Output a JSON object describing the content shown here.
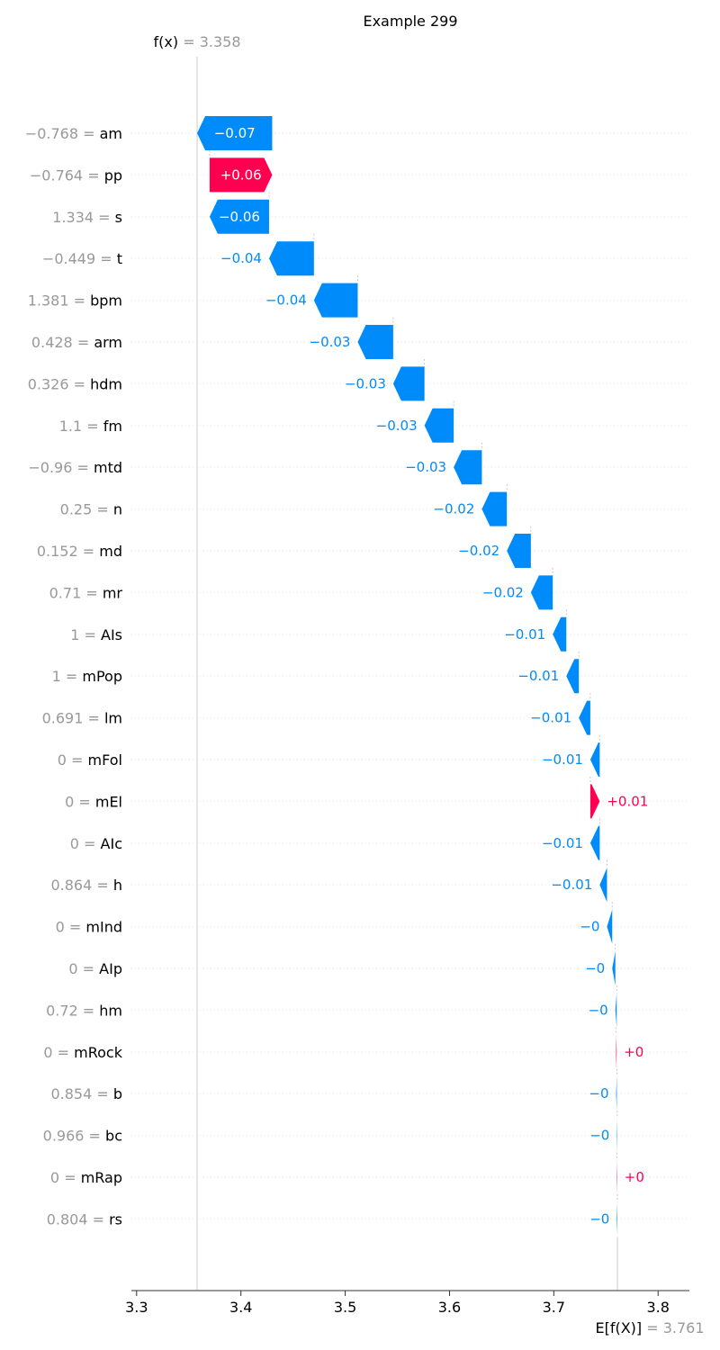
{
  "chart_data": {
    "type": "waterfall",
    "title": "Example 299",
    "fx": {
      "label": "f(x)",
      "value": "3.358"
    },
    "efx": {
      "label": "E[f(X)]",
      "value": "3.761"
    },
    "base_value": 3.761,
    "output_value": 3.358,
    "xlim": [
      3.295,
      3.83
    ],
    "xticks": [
      3.3,
      3.4,
      3.5,
      3.6,
      3.7,
      3.8
    ],
    "xtick_labels": [
      "3.3",
      "3.4",
      "3.5",
      "3.6",
      "3.7",
      "3.8"
    ],
    "colors": {
      "positive": "#ff0051",
      "negative": "#008bfb"
    },
    "features": [
      {
        "value": "−0.768",
        "name": "am",
        "start": 3.43,
        "end": 3.358,
        "label": "−0.07"
      },
      {
        "value": "−0.764",
        "name": "pp",
        "start": 3.37,
        "end": 3.43,
        "label": "+0.06"
      },
      {
        "value": "1.334",
        "name": "s",
        "start": 3.427,
        "end": 3.37,
        "label": "−0.06"
      },
      {
        "value": "−0.449",
        "name": "t",
        "start": 3.47,
        "end": 3.427,
        "label": "−0.04"
      },
      {
        "value": "1.381",
        "name": "bpm",
        "start": 3.512,
        "end": 3.47,
        "label": "−0.04"
      },
      {
        "value": "0.428",
        "name": "arm",
        "start": 3.546,
        "end": 3.512,
        "label": "−0.03"
      },
      {
        "value": "0.326",
        "name": "hdm",
        "start": 3.576,
        "end": 3.546,
        "label": "−0.03"
      },
      {
        "value": "1.1",
        "name": "fm",
        "start": 3.604,
        "end": 3.576,
        "label": "−0.03"
      },
      {
        "value": "−0.96",
        "name": "mtd",
        "start": 3.631,
        "end": 3.604,
        "label": "−0.03"
      },
      {
        "value": "0.25",
        "name": "n",
        "start": 3.655,
        "end": 3.631,
        "label": "−0.02"
      },
      {
        "value": "0.152",
        "name": "md",
        "start": 3.678,
        "end": 3.655,
        "label": "−0.02"
      },
      {
        "value": "0.71",
        "name": "mr",
        "start": 3.699,
        "end": 3.678,
        "label": "−0.02"
      },
      {
        "value": "1",
        "name": "AIs",
        "start": 3.712,
        "end": 3.699,
        "label": "−0.01"
      },
      {
        "value": "1",
        "name": "mPop",
        "start": 3.724,
        "end": 3.712,
        "label": "−0.01"
      },
      {
        "value": "0.691",
        "name": "lm",
        "start": 3.735,
        "end": 3.724,
        "label": "−0.01"
      },
      {
        "value": "0",
        "name": "mFol",
        "start": 3.744,
        "end": 3.735,
        "label": "−0.01"
      },
      {
        "value": "0",
        "name": "mEl",
        "start": 3.735,
        "end": 3.744,
        "label": "+0.01"
      },
      {
        "value": "0",
        "name": "AIc",
        "start": 3.744,
        "end": 3.735,
        "label": "−0.01"
      },
      {
        "value": "0.864",
        "name": "h",
        "start": 3.751,
        "end": 3.744,
        "label": "−0.01"
      },
      {
        "value": "0",
        "name": "mInd",
        "start": 3.756,
        "end": 3.751,
        "label": "−0"
      },
      {
        "value": "0",
        "name": "AIp",
        "start": 3.759,
        "end": 3.756,
        "label": "−0"
      },
      {
        "value": "0.72",
        "name": "hm",
        "start": 3.7603,
        "end": 3.759,
        "label": "−0"
      },
      {
        "value": "0",
        "name": "mRock",
        "start": 3.7597,
        "end": 3.7603,
        "label": "+0"
      },
      {
        "value": "0.854",
        "name": "b",
        "start": 3.7604,
        "end": 3.7597,
        "label": "−0"
      },
      {
        "value": "0.966",
        "name": "bc",
        "start": 3.7608,
        "end": 3.7604,
        "label": "−0"
      },
      {
        "value": "0",
        "name": "mRap",
        "start": 3.7604,
        "end": 3.7608,
        "label": "+0"
      },
      {
        "value": "0.804",
        "name": "rs",
        "start": 3.761,
        "end": 3.7604,
        "label": "−0"
      }
    ]
  }
}
